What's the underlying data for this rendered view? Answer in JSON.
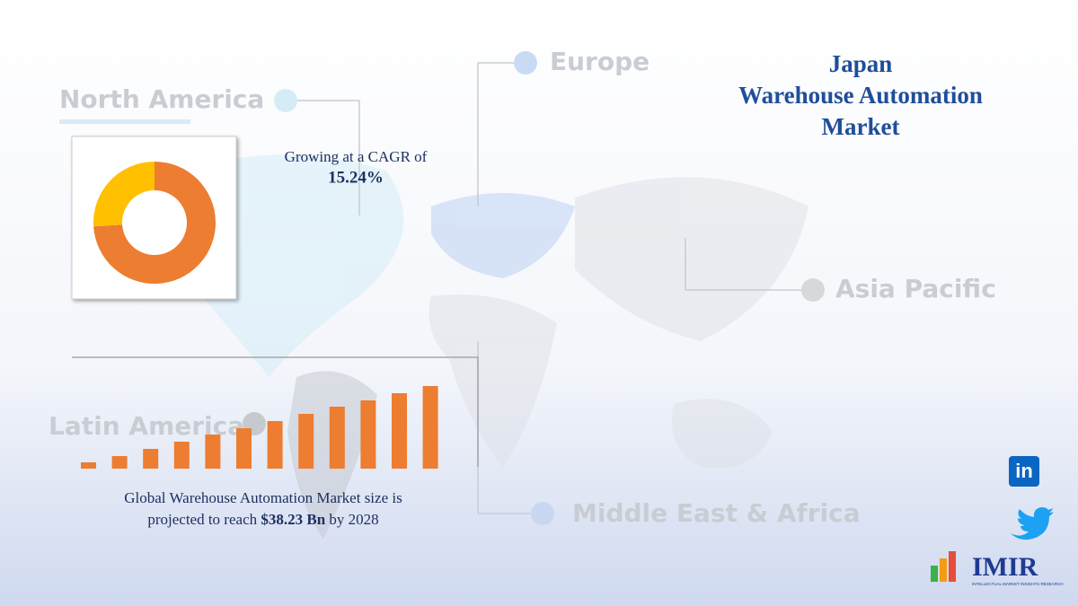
{
  "header": {
    "title_lines": [
      "Japan",
      "Warehouse Automation",
      "Market"
    ]
  },
  "regions": {
    "north_america": "North America",
    "europe": "Europe",
    "asia_pacific": "Asia Pacific",
    "latin_america": "Latin America",
    "middle_east_africa": "Middle East & Africa"
  },
  "cagr": {
    "text": "Growing at a CAGR of",
    "value": "15.24%"
  },
  "projection": {
    "line1": "Global Warehouse Automation Market size is",
    "line2_start": "projected to reach",
    "amount": "$38.23 Bn",
    "line2_end": "by 2028"
  },
  "social": {
    "linkedin": "in"
  },
  "logo": {
    "name": "IMIR",
    "tagline": "INTELLECTUAL MARKET INSIGHTS RESEARCH"
  },
  "chart_data": [
    {
      "type": "pie",
      "values": [
        74,
        26
      ],
      "colors": [
        "#ed7d31",
        "#ffc000"
      ]
    },
    {
      "type": "bar",
      "values": [
        7,
        14,
        22,
        30,
        38,
        45,
        53,
        61,
        69,
        76,
        84,
        92
      ],
      "color": "#ed7d31"
    }
  ]
}
